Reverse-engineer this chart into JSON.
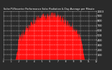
{
  "title": "Solar PV/Inverter Performance Solar Radiation & Day Average per Minute",
  "title2": "Day Average per Minute",
  "bg_color": "#2a2a2a",
  "plot_bg_color": "#2a2a2a",
  "grid_color": "#888888",
  "bar_color": "#ff1111",
  "ylim": [
    0,
    1000
  ],
  "num_points": 300,
  "peak": 950,
  "noise_scale": 55,
  "ytick_vals": [
    100,
    200,
    300,
    400,
    500,
    600,
    700,
    800,
    900,
    1000
  ],
  "ytick_labels": [
    "100",
    "200",
    "300",
    "400",
    "500",
    "600",
    "700",
    "800",
    "900",
    "1000"
  ],
  "xtick_count": 13
}
